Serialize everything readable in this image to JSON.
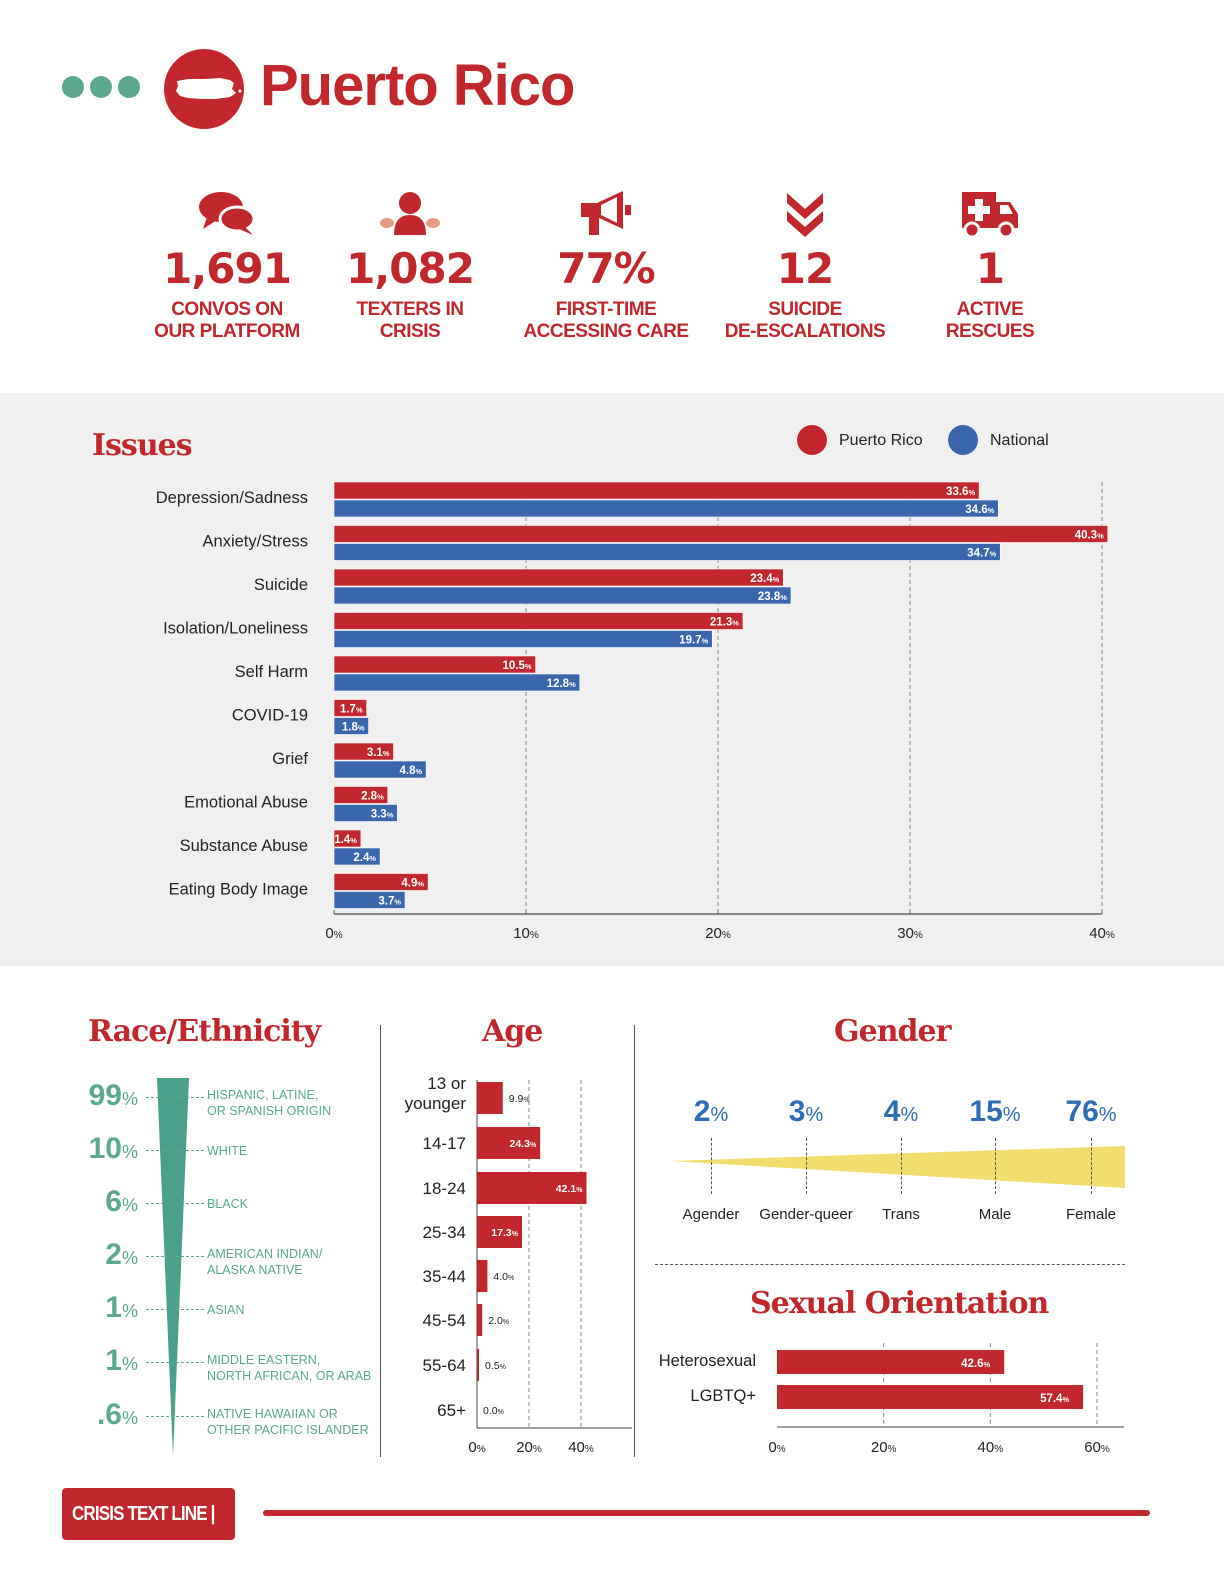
{
  "header": {
    "title": "Puerto Rico"
  },
  "stats": [
    {
      "icon": "chat-bubbles-icon",
      "value": "1,691",
      "label": [
        "CONVOS ON",
        "OUR PLATFORM"
      ]
    },
    {
      "icon": "person-icon",
      "value": "1,082",
      "label": [
        "TEXTERS IN",
        "CRISIS"
      ]
    },
    {
      "icon": "megaphone-icon",
      "value": "77%",
      "label": [
        "FIRST-TIME",
        "ACCESSING CARE"
      ]
    },
    {
      "icon": "double-chevron-down-icon",
      "value": "12",
      "label": [
        "SUICIDE",
        "DE-ESCALATIONS"
      ]
    },
    {
      "icon": "ambulance-icon",
      "value": "1",
      "label": [
        "ACTIVE",
        "RESCUES"
      ]
    }
  ],
  "colors": {
    "red": "#c1272d",
    "blue": "#3a66ad",
    "teal": "#5ba88f",
    "yellow": "#f2dc6b",
    "gender_blue": "#2e6db4"
  },
  "issues": {
    "title": "Issues",
    "legend": [
      "Puerto Rico",
      "National"
    ],
    "chart_data": {
      "type": "bar",
      "orientation": "horizontal",
      "categories": [
        "Depression/Sadness",
        "Anxiety/Stress",
        "Suicide",
        "Isolation/Loneliness",
        "Self Harm",
        "COVID-19",
        "Grief",
        "Emotional Abuse",
        "Substance Abuse",
        "Eating Body Image"
      ],
      "series": [
        {
          "name": "Puerto Rico",
          "values": [
            33.6,
            40.3,
            23.4,
            21.3,
            10.5,
            1.7,
            3.1,
            2.8,
            1.4,
            4.9
          ]
        },
        {
          "name": "National",
          "values": [
            34.6,
            34.7,
            23.8,
            19.7,
            12.8,
            1.8,
            4.8,
            3.3,
            2.4,
            3.7
          ]
        }
      ],
      "xlim": [
        0,
        40
      ],
      "xticks": [
        0,
        10,
        20,
        30,
        40
      ],
      "unit": "%",
      "grid": "vertical dashed"
    }
  },
  "race": {
    "title": "Race/Ethnicity",
    "items": [
      {
        "pct": "99",
        "label": [
          "HISPANIC, LATINE,",
          "OR SPANISH ORIGIN"
        ]
      },
      {
        "pct": "10",
        "label": [
          "WHITE"
        ]
      },
      {
        "pct": "6",
        "label": [
          "BLACK"
        ]
      },
      {
        "pct": "2",
        "label": [
          "AMERICAN INDIAN/",
          "ALASKA NATIVE"
        ]
      },
      {
        "pct": "1",
        "label": [
          "ASIAN"
        ]
      },
      {
        "pct": "1",
        "label": [
          "MIDDLE EASTERN,",
          "NORTH AFRICAN, OR ARAB"
        ]
      },
      {
        "pct": ".6",
        "label": [
          "NATIVE HAWAIIAN OR",
          "OTHER PACIFIC ISLANDER"
        ]
      }
    ],
    "pct_suffix": "%"
  },
  "age": {
    "title": "Age",
    "chart_data": {
      "type": "bar",
      "orientation": "horizontal",
      "categories": [
        "13 or younger",
        "14-17",
        "18-24",
        "25-34",
        "35-44",
        "45-54",
        "55-64",
        "65+"
      ],
      "values": [
        9.9,
        24.3,
        42.1,
        17.3,
        4.0,
        2.0,
        0.5,
        0.0
      ],
      "xlim": [
        0,
        50
      ],
      "xticks": [
        0,
        20,
        40
      ],
      "unit": "%"
    }
  },
  "gender": {
    "title": "Gender",
    "chart_data": {
      "type": "bar",
      "categories": [
        "Agender",
        "Gender-queer",
        "Trans",
        "Male",
        "Female"
      ],
      "values": [
        2,
        3,
        4,
        15,
        76
      ],
      "unit": "%"
    }
  },
  "orientation": {
    "title": "Sexual Orientation",
    "chart_data": {
      "type": "bar",
      "orientation": "horizontal",
      "categories": [
        "Heterosexual",
        "LGBTQ+"
      ],
      "values": [
        42.6,
        57.4
      ],
      "xlim": [
        0,
        60
      ],
      "xticks": [
        0,
        20,
        40,
        60
      ],
      "unit": "%"
    }
  },
  "footer": {
    "brand": "CRISIS TEXT LINE |"
  }
}
